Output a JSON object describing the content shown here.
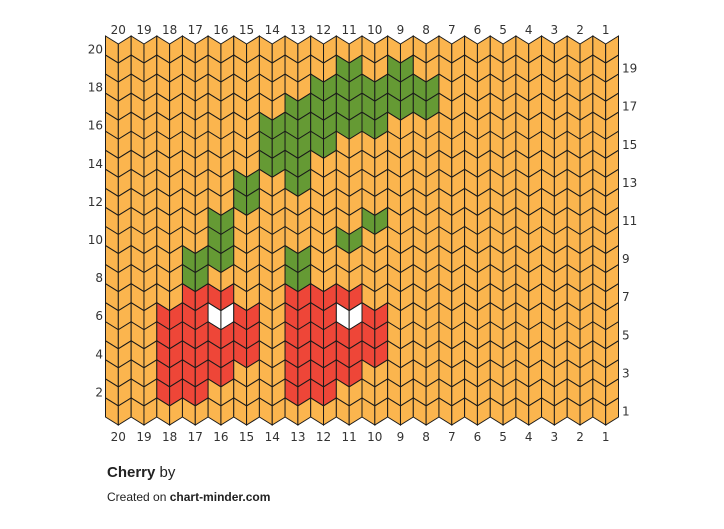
{
  "pattern": {
    "title": "Cherry",
    "by_label": "by",
    "created_label": "Created on",
    "site": "chart-minder.com"
  },
  "grid": {
    "columns": 20,
    "rows": 20,
    "column_labels": [
      "20",
      "19",
      "18",
      "17",
      "16",
      "15",
      "14",
      "13",
      "12",
      "11",
      "10",
      "9",
      "8",
      "7",
      "6",
      "5",
      "4",
      "3",
      "2",
      "1"
    ],
    "left_row_labels": [
      "20",
      "18",
      "16",
      "14",
      "12",
      "10",
      "8",
      "6",
      "4",
      "2"
    ],
    "right_row_labels": [
      "19",
      "17",
      "15",
      "13",
      "11",
      "9",
      "7",
      "5",
      "3",
      "1"
    ]
  },
  "colors": {
    "background": "#FBB54E",
    "leaf": "#659A34",
    "cherry": "#EE4638",
    "highlight": "#FFFFFF",
    "outline": "#1A1A1A"
  },
  "stitches": {
    "legend": {
      ".": "background",
      "G": "leaf",
      "R": "cherry",
      "W": "highlight"
    },
    "rows_top_to_bottom": [
      "....................",
      ".........G.G........",
      "........GGGGG.......",
      ".......GGGGGG.......",
      "......GGGGG.........",
      "......GGG...........",
      "......GG............",
      ".....G.G............",
      ".....G..............",
      "....G.....G.........",
      "....G....G..........",
      "...GG..G............",
      "...G...G............",
      "...RR..RRR..........",
      "..RRWR.RRWR.........",
      "..RRRR.RRRR.........",
      "..RRRR.RRRR.........",
      "..RRR..RRR..........",
      "..RR...RR...........",
      "...................."
    ]
  }
}
